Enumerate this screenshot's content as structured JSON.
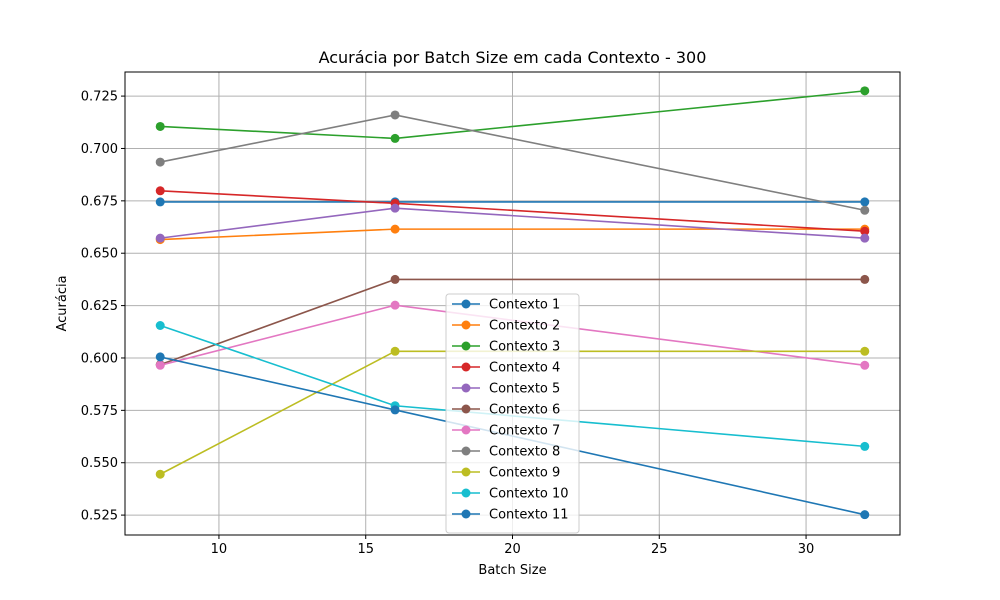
{
  "chart_data": {
    "type": "line",
    "title": "Acurácia por Batch Size em cada Contexto - 300",
    "xlabel": "Batch Size",
    "ylabel": "Acurácia",
    "x": [
      8,
      16,
      32
    ],
    "xlim": [
      6.8,
      33.2
    ],
    "ylim": [
      0.5155,
      0.7365
    ],
    "xticks": [
      10,
      15,
      20,
      25,
      30
    ],
    "xtick_labels": [
      "10",
      "15",
      "20",
      "25",
      "30"
    ],
    "yticks": [
      0.525,
      0.55,
      0.575,
      0.6,
      0.625,
      0.65,
      0.675,
      0.7,
      0.725
    ],
    "ytick_labels": [
      "0.525",
      "0.550",
      "0.575",
      "0.600",
      "0.625",
      "0.650",
      "0.675",
      "0.700",
      "0.725"
    ],
    "grid": true,
    "legend_position": "center-bottom",
    "series": [
      {
        "name": "Contexto 1",
        "color": "#1f77b4",
        "values": [
          0.6745,
          0.6745,
          0.6745
        ]
      },
      {
        "name": "Contexto 2",
        "color": "#ff7f0e",
        "values": [
          0.6565,
          0.6615,
          0.6615
        ]
      },
      {
        "name": "Contexto 3",
        "color": "#2ca02c",
        "values": [
          0.7105,
          0.7048,
          0.7275
        ]
      },
      {
        "name": "Contexto 4",
        "color": "#d62728",
        "values": [
          0.6798,
          0.6738,
          0.6605
        ]
      },
      {
        "name": "Contexto 5",
        "color": "#9467bd",
        "values": [
          0.6572,
          0.6715,
          0.6572
        ]
      },
      {
        "name": "Contexto 6",
        "color": "#8c564b",
        "values": [
          0.5968,
          0.6375,
          0.6375
        ]
      },
      {
        "name": "Contexto 7",
        "color": "#e377c2",
        "values": [
          0.5965,
          0.6252,
          0.5965
        ]
      },
      {
        "name": "Contexto 8",
        "color": "#7f7f7f",
        "values": [
          0.6935,
          0.716,
          0.6705
        ]
      },
      {
        "name": "Contexto 9",
        "color": "#bcbd22",
        "values": [
          0.5445,
          0.6032,
          0.6032
        ]
      },
      {
        "name": "Contexto 10",
        "color": "#17becf",
        "values": [
          0.6155,
          0.5772,
          0.5578
        ]
      },
      {
        "name": "Contexto 11",
        "color": "#1f77b4",
        "values": [
          0.6005,
          0.5752,
          0.5252
        ]
      }
    ]
  }
}
